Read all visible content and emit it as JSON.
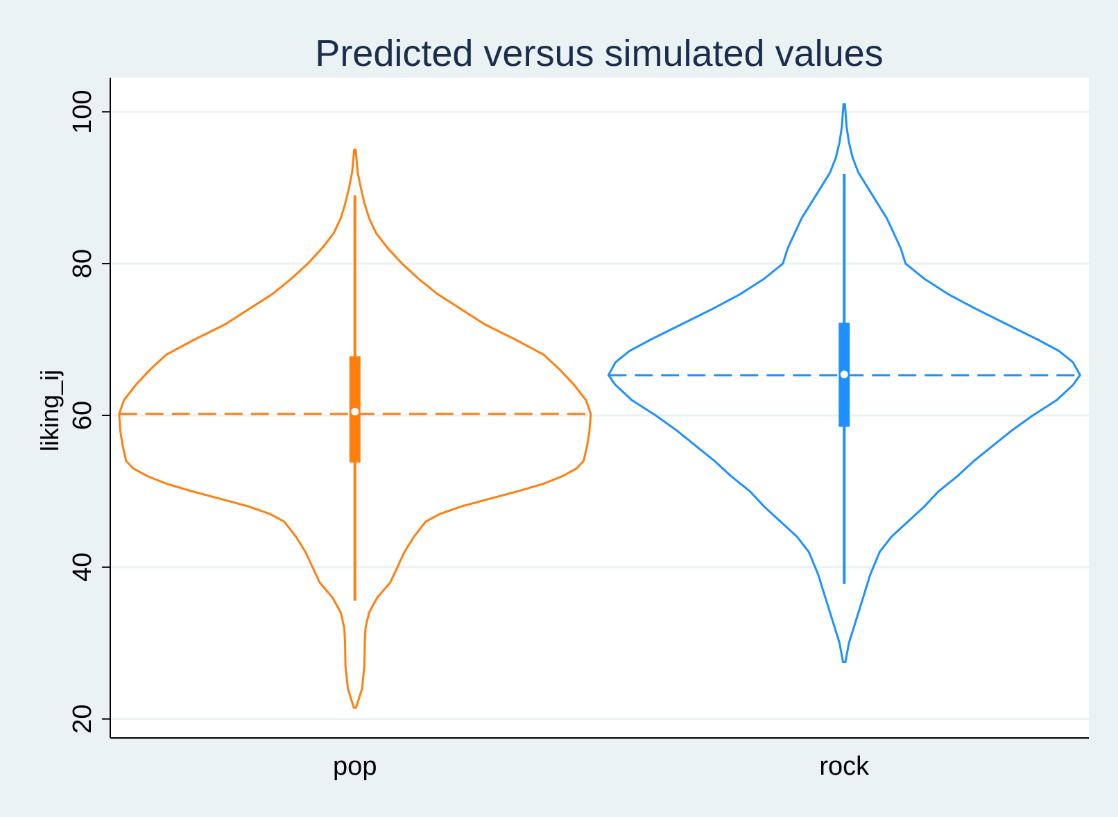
{
  "chart_data": {
    "type": "violin",
    "title": "Predicted versus simulated values",
    "xlabel": "",
    "ylabel": "liking_ij",
    "ylim": [
      17.5,
      104.5
    ],
    "yticks": [
      20,
      40,
      60,
      80,
      100
    ],
    "ytick_labels": [
      "20",
      "40",
      "60",
      "80",
      "100"
    ],
    "grid": true,
    "legend": "none",
    "categories": [
      "pop",
      "rock"
    ],
    "colors": {
      "pop": "#ff7f0e",
      "rock": "#1e90ff",
      "plot_bg": "#ffffff",
      "page_bg": "#eaf2f3",
      "grid": "#eaf2f3"
    },
    "series": [
      {
        "category": "pop",
        "median": 60.5,
        "q1": 53.8,
        "q3": 67.8,
        "whisker_low": 35.6,
        "whisker_high": 89,
        "predicted": 60.2,
        "min": 21.5,
        "max": 95,
        "density_profile": [
          [
            21.5,
            0.005
          ],
          [
            24,
            0.03
          ],
          [
            27,
            0.04
          ],
          [
            30,
            0.042
          ],
          [
            32,
            0.045
          ],
          [
            34,
            0.06
          ],
          [
            36,
            0.095
          ],
          [
            38,
            0.15
          ],
          [
            40,
            0.18
          ],
          [
            42,
            0.21
          ],
          [
            44,
            0.25
          ],
          [
            46,
            0.3
          ],
          [
            47,
            0.36
          ],
          [
            48,
            0.45
          ],
          [
            49,
            0.57
          ],
          [
            50,
            0.69
          ],
          [
            51,
            0.8
          ],
          [
            52,
            0.88
          ],
          [
            53,
            0.94
          ],
          [
            54,
            0.97
          ],
          [
            56,
            0.985
          ],
          [
            58,
            0.995
          ],
          [
            60.2,
            1.0
          ],
          [
            62,
            0.98
          ],
          [
            64,
            0.93
          ],
          [
            66,
            0.87
          ],
          [
            68,
            0.8
          ],
          [
            70,
            0.68
          ],
          [
            72,
            0.55
          ],
          [
            74,
            0.45
          ],
          [
            76,
            0.35
          ],
          [
            78,
            0.27
          ],
          [
            80,
            0.2
          ],
          [
            82,
            0.14
          ],
          [
            84,
            0.09
          ],
          [
            86,
            0.06
          ],
          [
            88,
            0.04
          ],
          [
            90,
            0.025
          ],
          [
            92,
            0.012
          ],
          [
            95,
            0.003
          ]
        ]
      },
      {
        "category": "rock",
        "median": 65.4,
        "q1": 58.5,
        "q3": 72.2,
        "whisker_low": 37.8,
        "whisker_high": 91.8,
        "predicted": 65.3,
        "min": 27.5,
        "max": 101,
        "density_profile": [
          [
            27.5,
            0.005
          ],
          [
            30,
            0.02
          ],
          [
            33,
            0.05
          ],
          [
            36,
            0.08
          ],
          [
            39,
            0.11
          ],
          [
            42,
            0.15
          ],
          [
            44,
            0.2
          ],
          [
            46,
            0.27
          ],
          [
            48,
            0.34
          ],
          [
            50,
            0.4
          ],
          [
            52,
            0.48
          ],
          [
            54,
            0.55
          ],
          [
            56,
            0.63
          ],
          [
            58,
            0.71
          ],
          [
            60,
            0.8
          ],
          [
            62,
            0.9
          ],
          [
            64,
            0.97
          ],
          [
            65.3,
            1.0
          ],
          [
            67,
            0.97
          ],
          [
            68.5,
            0.91
          ],
          [
            70,
            0.82
          ],
          [
            72,
            0.69
          ],
          [
            74,
            0.56
          ],
          [
            76,
            0.44
          ],
          [
            78,
            0.34
          ],
          [
            80,
            0.26
          ],
          [
            82,
            0.24
          ],
          [
            84,
            0.21
          ],
          [
            86,
            0.18
          ],
          [
            88,
            0.14
          ],
          [
            90,
            0.1
          ],
          [
            92,
            0.06
          ],
          [
            94,
            0.035
          ],
          [
            96,
            0.02
          ],
          [
            98,
            0.01
          ],
          [
            101,
            0.003
          ]
        ]
      }
    ]
  }
}
